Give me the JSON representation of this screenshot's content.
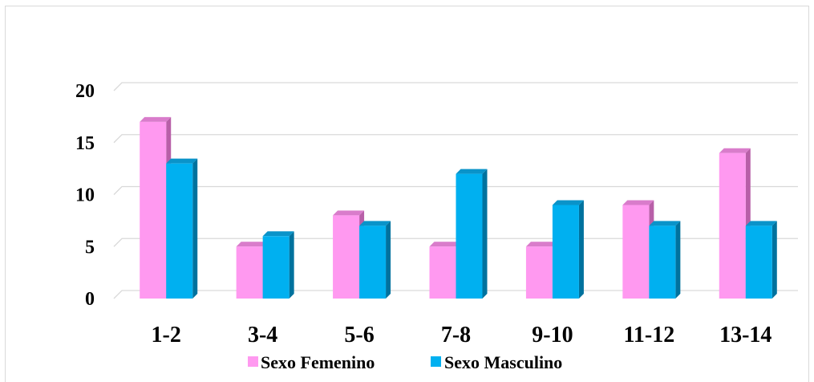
{
  "chart_data": {
    "type": "bar",
    "title": "",
    "xlabel": "",
    "ylabel": "",
    "categories": [
      "1-2",
      "3-4",
      "5-6",
      "7-8",
      "9-10",
      "11-12",
      "13-14"
    ],
    "series": [
      {
        "name": "Sexo Femenino",
        "values": [
          17,
          5,
          8,
          5,
          5,
          9,
          14
        ],
        "color": "#ff99f0"
      },
      {
        "name": "Sexo Masculino",
        "values": [
          13,
          6,
          7,
          12,
          9,
          7,
          7
        ],
        "color": "#00b0f0"
      }
    ],
    "ylim": [
      0,
      20
    ],
    "yticks": [
      "0",
      "5",
      "10",
      "15",
      "20"
    ],
    "grid": true,
    "legend": "bottom",
    "style": "3d-clustered-column"
  }
}
